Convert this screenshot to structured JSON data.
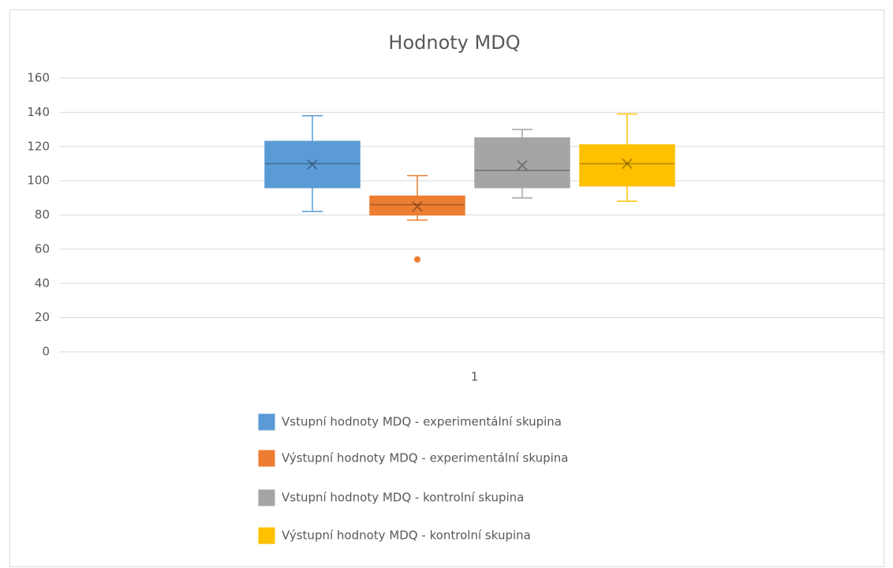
{
  "chart_data": {
    "type": "box",
    "title": "Hodnoty MDQ",
    "categories": [
      "1"
    ],
    "ylim": [
      0,
      160
    ],
    "yticks": [
      0,
      20,
      40,
      60,
      80,
      100,
      120,
      140,
      160
    ],
    "grid": true,
    "series": [
      {
        "name": "Vstupní hodnoty MDQ - experimentální skupina",
        "color": "#5b9bd5",
        "min": 82,
        "q1": 96,
        "median": 110,
        "q3": 123,
        "max": 138,
        "mean": 109.5,
        "outliers": []
      },
      {
        "name": "Výstupní hodnoty MDQ - experimentální skupina",
        "color": "#ed7d31",
        "min": 77,
        "q1": 80,
        "median": 86,
        "q3": 91,
        "max": 103,
        "mean": 85,
        "outliers": [
          54
        ]
      },
      {
        "name": "Vstupní hodnoty MDQ - kontrolní skupina",
        "color": "#a5a5a5",
        "min": 90,
        "q1": 96,
        "median": 106,
        "q3": 125,
        "max": 130,
        "mean": 109,
        "outliers": []
      },
      {
        "name": "Výstupní hodnoty MDQ - kontrolní skupina",
        "color": "#ffc000",
        "min": 88,
        "q1": 97,
        "median": 110,
        "q3": 121,
        "max": 139,
        "mean": 110,
        "outliers": []
      }
    ]
  }
}
